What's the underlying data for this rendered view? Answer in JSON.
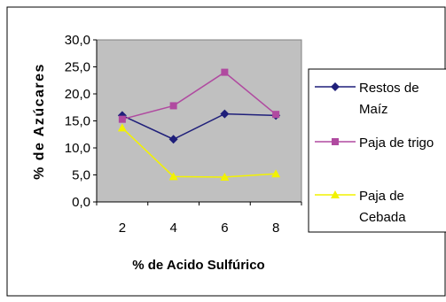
{
  "chart_data": {
    "type": "line",
    "categories": [
      "2",
      "4",
      "6",
      "8"
    ],
    "series": [
      {
        "name": "Restos de Maíz",
        "name_lines": [
          "Restos de",
          "Maíz"
        ],
        "values": [
          16.0,
          11.6,
          16.3,
          16.0
        ],
        "color": "#1f1f7a",
        "marker": "diamond"
      },
      {
        "name": "Paja de trigo",
        "name_lines": [
          "Paja de trigo"
        ],
        "values": [
          15.3,
          17.8,
          24.0,
          16.2
        ],
        "color": "#b04aa0",
        "marker": "square"
      },
      {
        "name": "Paja de Cebada",
        "name_lines": [
          "Paja de",
          "Cebada"
        ],
        "values": [
          13.7,
          4.7,
          4.6,
          5.2
        ],
        "color": "#f2f200",
        "marker": "triangle"
      }
    ],
    "xlabel": "% de Acido Sulfúrico",
    "ylabel": "% de Azúcares",
    "ylim": [
      0,
      30
    ],
    "yticks": [
      "0,0",
      "5,0",
      "10,0",
      "15,0",
      "20,0",
      "25,0",
      "30,0"
    ],
    "plot_background": "#c0c0c0",
    "legend_position": "right",
    "grid": false
  }
}
